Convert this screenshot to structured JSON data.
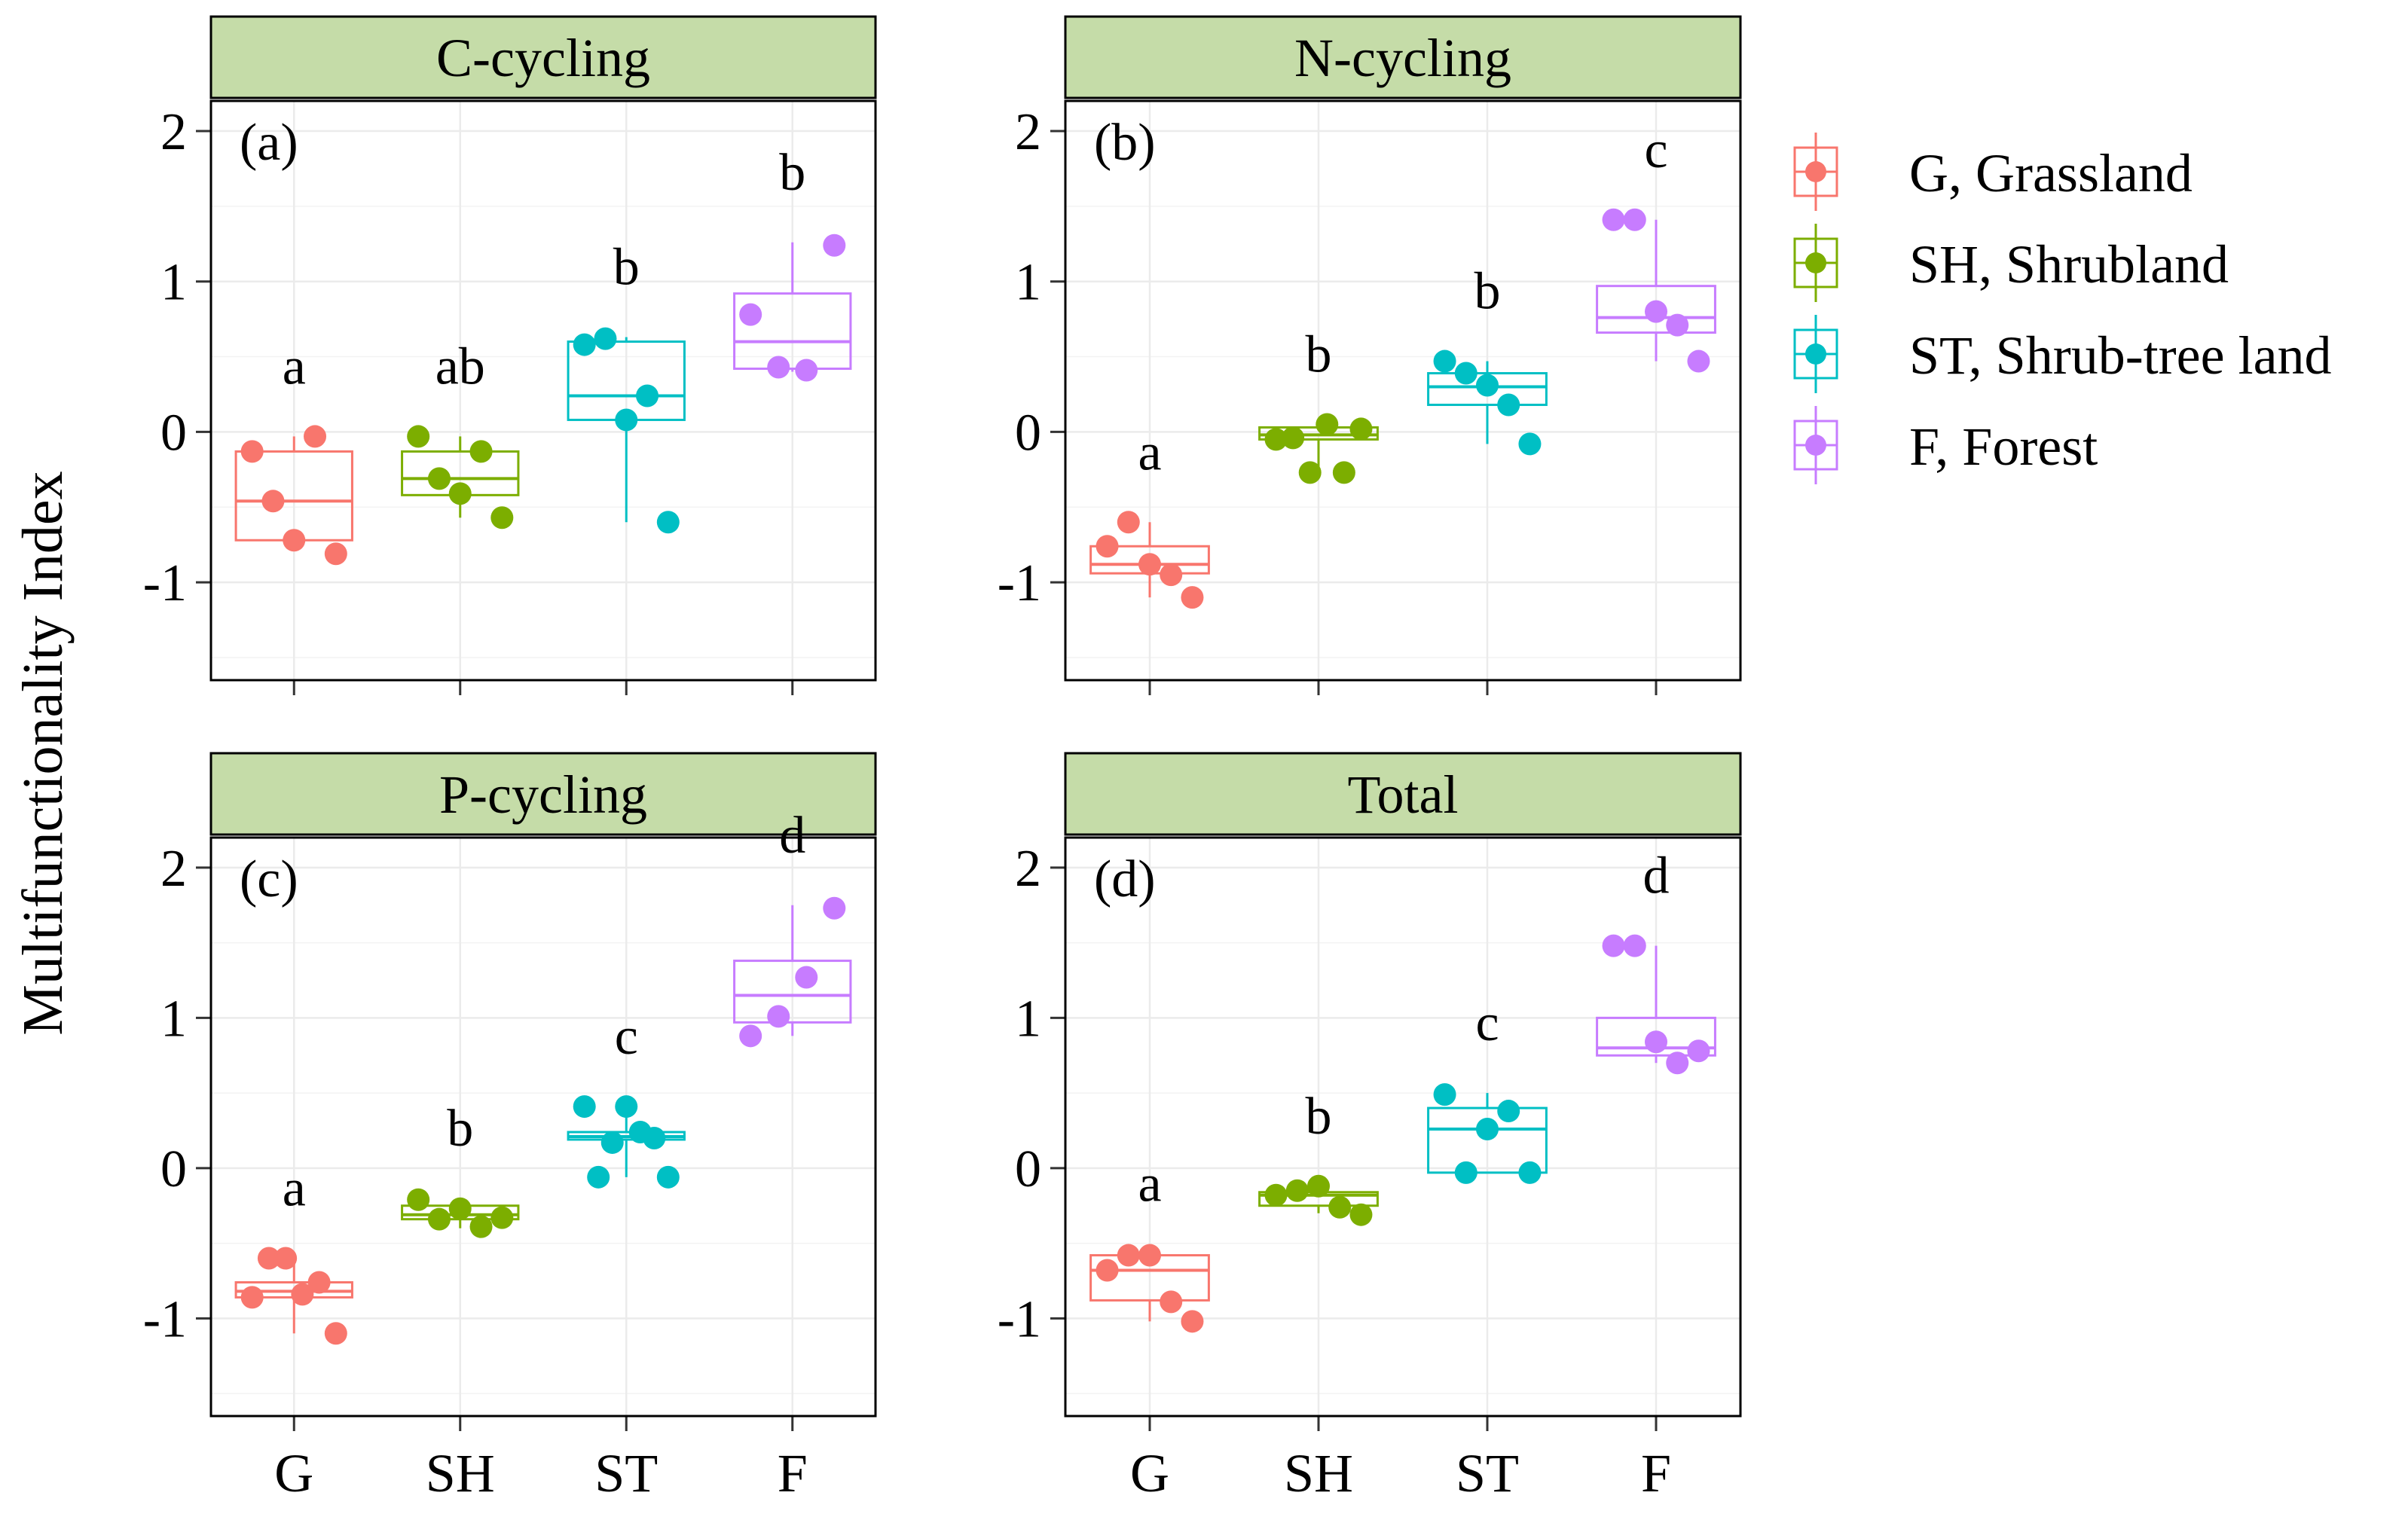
{
  "chart_data": {
    "type": "box",
    "ylabel": "Multifunctionality Index",
    "categories": [
      "G",
      "SH",
      "ST",
      "F"
    ],
    "ylim": [
      -1.65,
      2.2
    ],
    "yticks": [
      -1,
      0,
      1,
      2
    ],
    "grid": true,
    "legend": {
      "position": "right",
      "entries": [
        {
          "key": "G",
          "label": "G, Grassland",
          "color": "#F8766D"
        },
        {
          "key": "SH",
          "label": "SH, Shrubland",
          "color": "#7CAE00"
        },
        {
          "key": "ST",
          "label": "ST, Shrub-tree land",
          "color": "#00BFC4"
        },
        {
          "key": "F",
          "label": "F, Forest",
          "color": "#C77CFF"
        }
      ]
    },
    "panels": [
      {
        "title": "C-cycling",
        "tag": "(a)",
        "groups": [
          {
            "category": "G",
            "letter": "a",
            "box": {
              "min": -0.75,
              "q1": -0.72,
              "median": -0.46,
              "q3": -0.13,
              "max": -0.03
            },
            "points": [
              -0.13,
              -0.46,
              -0.72,
              -0.03,
              -0.81
            ]
          },
          {
            "category": "SH",
            "letter": "ab",
            "box": {
              "min": -0.57,
              "q1": -0.42,
              "median": -0.31,
              "q3": -0.13,
              "max": -0.03
            },
            "points": [
              -0.03,
              -0.31,
              -0.41,
              -0.13,
              -0.57
            ]
          },
          {
            "category": "ST",
            "letter": "b",
            "box": {
              "min": -0.6,
              "q1": 0.08,
              "median": 0.24,
              "q3": 0.6,
              "max": 0.63
            },
            "points": [
              0.58,
              0.62,
              0.08,
              0.24,
              -0.6
            ]
          },
          {
            "category": "F",
            "letter": "b",
            "box": {
              "min": 0.4,
              "q1": 0.42,
              "median": 0.6,
              "q3": 0.92,
              "max": 1.26
            },
            "points": [
              0.78,
              0.43,
              0.41,
              1.24
            ]
          }
        ]
      },
      {
        "title": "N-cycling",
        "tag": "(b)",
        "groups": [
          {
            "category": "G",
            "letter": "a",
            "box": {
              "min": -1.1,
              "q1": -0.94,
              "median": -0.88,
              "q3": -0.76,
              "max": -0.6
            },
            "points": [
              -0.76,
              -0.6,
              -0.88,
              -0.95,
              -1.1
            ]
          },
          {
            "category": "SH",
            "letter": "b",
            "box": {
              "min": -0.27,
              "q1": -0.05,
              "median": -0.02,
              "q3": 0.03,
              "max": 0.05
            },
            "points": [
              -0.05,
              -0.04,
              -0.27,
              0.05,
              -0.27,
              0.02
            ]
          },
          {
            "category": "ST",
            "letter": "b",
            "box": {
              "min": -0.08,
              "q1": 0.18,
              "median": 0.3,
              "q3": 0.39,
              "max": 0.47
            },
            "points": [
              0.47,
              0.39,
              0.31,
              0.18,
              -0.08
            ]
          },
          {
            "category": "F",
            "letter": "c",
            "box": {
              "min": 0.47,
              "q1": 0.66,
              "median": 0.76,
              "q3": 0.97,
              "max": 1.41
            },
            "points": [
              1.41,
              1.41,
              0.8,
              0.71,
              0.47
            ]
          }
        ]
      },
      {
        "title": "P-cycling",
        "tag": "(c)",
        "groups": [
          {
            "category": "G",
            "letter": "a",
            "box": {
              "min": -1.1,
              "q1": -0.86,
              "median": -0.82,
              "q3": -0.76,
              "max": -0.6
            },
            "points": [
              -0.86,
              -0.6,
              -0.6,
              -0.84,
              -0.76,
              -1.1
            ]
          },
          {
            "category": "SH",
            "letter": "b",
            "box": {
              "min": -0.4,
              "q1": -0.34,
              "median": -0.31,
              "q3": -0.25,
              "max": -0.2
            },
            "points": [
              -0.21,
              -0.34,
              -0.27,
              -0.39,
              -0.33
            ]
          },
          {
            "category": "ST",
            "letter": "c",
            "box": {
              "min": -0.06,
              "q1": 0.19,
              "median": 0.21,
              "q3": 0.24,
              "max": 0.41
            },
            "points": [
              0.41,
              -0.06,
              0.17,
              0.41,
              0.24,
              0.2,
              -0.06
            ]
          },
          {
            "category": "F",
            "letter": "d",
            "box": {
              "min": 0.88,
              "q1": 0.97,
              "median": 1.15,
              "q3": 1.38,
              "max": 1.75
            },
            "points": [
              0.88,
              1.01,
              1.27,
              1.73
            ]
          }
        ]
      },
      {
        "title": "Total",
        "tag": "(d)",
        "groups": [
          {
            "category": "G",
            "letter": "a",
            "box": {
              "min": -1.02,
              "q1": -0.88,
              "median": -0.68,
              "q3": -0.58,
              "max": -0.57
            },
            "points": [
              -0.68,
              -0.58,
              -0.58,
              -0.89,
              -1.02
            ]
          },
          {
            "category": "SH",
            "letter": "b",
            "box": {
              "min": -0.3,
              "q1": -0.25,
              "median": -0.18,
              "q3": -0.16,
              "max": -0.12
            },
            "points": [
              -0.18,
              -0.15,
              -0.12,
              -0.26,
              -0.31
            ]
          },
          {
            "category": "ST",
            "letter": "c",
            "box": {
              "min": -0.03,
              "q1": -0.03,
              "median": 0.26,
              "q3": 0.4,
              "max": 0.5
            },
            "points": [
              0.49,
              -0.03,
              0.26,
              0.38,
              -0.03
            ]
          },
          {
            "category": "F",
            "letter": "d",
            "box": {
              "min": 0.7,
              "q1": 0.75,
              "median": 0.8,
              "q3": 1.0,
              "max": 1.48
            },
            "points": [
              1.48,
              1.48,
              0.84,
              0.7,
              0.78
            ]
          }
        ]
      }
    ]
  }
}
